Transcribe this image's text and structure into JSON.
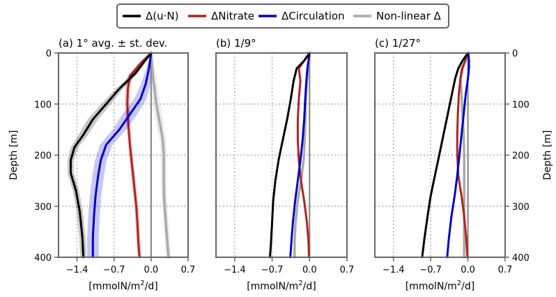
{
  "legend": {
    "items": [
      {
        "label": "Δ(u·N)",
        "color": "#000000"
      },
      {
        "label": "ΔNitrate",
        "color": "#b22222"
      },
      {
        "label": "ΔCirculation",
        "color": "#0000cc"
      },
      {
        "label": "Non-linear Δ",
        "color": "#aaaaaa"
      }
    ]
  },
  "chart_data": {
    "type": "line",
    "shared": {
      "xlim": [
        -1.75,
        0.7
      ],
      "ylim": [
        400,
        0
      ],
      "xticks": [
        -1.4,
        -0.7,
        0.0,
        0.7
      ],
      "xtick_labels": [
        "−1.4",
        "−0.7",
        "0.0",
        "0.7"
      ],
      "yticks": [
        0,
        100,
        200,
        300,
        400
      ],
      "xlabel": "[mmolN/m²/d]",
      "ylabel": "Depth [m]",
      "grid": true,
      "legend_position": "top-center"
    },
    "panels": [
      {
        "title": "(a) 1° avg. ± st. dev.",
        "ylabel_side": "left",
        "series": [
          {
            "name": "Δ(u·N)",
            "color": "#000000",
            "x": [
              0,
              -0.3,
              -0.6,
              -0.85,
              -1.1,
              -1.28,
              -1.45,
              -1.52,
              -1.52,
              -1.42,
              -1.35,
              -1.3,
              -1.28
            ],
            "y": [
              0,
              40,
              70,
              100,
              130,
              160,
              185,
              210,
              235,
              270,
              310,
              360,
              400
            ],
            "band": [
              0.0,
              0.05,
              0.07,
              0.09,
              0.1,
              0.09,
              0.07,
              0.06,
              0.06,
              0.06,
              0.06,
              0.06,
              0.06
            ]
          },
          {
            "name": "ΔNitrate",
            "color": "#b22222",
            "x": [
              0,
              -0.2,
              -0.4,
              -0.44,
              -0.45,
              -0.43,
              -0.4,
              -0.36,
              -0.32,
              -0.28,
              -0.26,
              -0.24,
              -0.22
            ],
            "y": [
              0,
              20,
              45,
              70,
              100,
              140,
              180,
              220,
              260,
              300,
              330,
              370,
              400
            ],
            "band": [
              0.0,
              0.03,
              0.05,
              0.05,
              0.05,
              0.04,
              0.04,
              0.04,
              0.04,
              0.04,
              0.04,
              0.04,
              0.04
            ]
          },
          {
            "name": "ΔCirculation",
            "color": "#0000cc",
            "x": [
              0,
              -0.04,
              -0.1,
              -0.2,
              -0.4,
              -0.6,
              -0.85,
              -0.95,
              -1.0,
              -1.05,
              -1.08,
              -1.1,
              -1.1
            ],
            "y": [
              0,
              30,
              60,
              90,
              120,
              150,
              180,
              210,
              240,
              280,
              320,
              360,
              400
            ],
            "band": [
              0.0,
              0.05,
              0.09,
              0.12,
              0.14,
              0.13,
              0.12,
              0.11,
              0.11,
              0.11,
              0.11,
              0.11,
              0.11
            ]
          },
          {
            "name": "Non-linear Δ",
            "color": "#aaaaaa",
            "x": [
              0,
              0.04,
              0.1,
              0.17,
              0.22,
              0.24,
              0.24,
              0.24,
              0.25,
              0.27,
              0.3,
              0.33
            ],
            "y": [
              0,
              50,
              100,
              140,
              170,
              200,
              230,
              260,
              290,
              320,
              360,
              400
            ],
            "band": [
              0.0,
              0.06,
              0.07,
              0.07,
              0.06,
              0.06,
              0.05,
              0.05,
              0.05,
              0.05,
              0.05,
              0.05
            ]
          }
        ]
      },
      {
        "title": "(b) 1/9°",
        "ylabel_side": "none",
        "series": [
          {
            "name": "Δ(u·N)",
            "color": "#000000",
            "x": [
              0,
              -0.1,
              -0.24,
              -0.3,
              -0.35,
              -0.42,
              -0.5,
              -0.58,
              -0.64,
              -0.68,
              -0.7,
              -0.72,
              -0.74
            ],
            "y": [
              0,
              15,
              30,
              55,
              90,
              130,
              170,
              210,
              250,
              290,
              330,
              370,
              400
            ]
          },
          {
            "name": "ΔNitrate",
            "color": "#b22222",
            "x": [
              0,
              -0.1,
              -0.2,
              -0.17,
              -0.2,
              -0.22,
              -0.22,
              -0.2,
              -0.16,
              -0.1,
              -0.05,
              -0.02,
              -0.01
            ],
            "y": [
              0,
              15,
              30,
              55,
              90,
              130,
              170,
              210,
              250,
              290,
              330,
              370,
              400
            ]
          },
          {
            "name": "ΔCirculation",
            "color": "#0000cc",
            "x": [
              0,
              -0.02,
              -0.04,
              -0.06,
              -0.08,
              -0.1,
              -0.13,
              -0.17,
              -0.22,
              -0.27,
              -0.31,
              -0.34,
              -0.36
            ],
            "y": [
              0,
              15,
              30,
              55,
              90,
              130,
              170,
              210,
              250,
              290,
              330,
              370,
              400
            ]
          },
          {
            "name": "Non-linear Δ",
            "color": "#aaaaaa",
            "x": [
              0,
              -0.01,
              -0.03,
              -0.05,
              -0.07,
              -0.08,
              -0.09,
              -0.11,
              -0.16,
              -0.22,
              -0.26,
              -0.28,
              -0.28
            ],
            "y": [
              0,
              15,
              30,
              55,
              90,
              130,
              170,
              210,
              250,
              290,
              330,
              370,
              400
            ]
          }
        ]
      },
      {
        "title": "(c) 1/27°",
        "ylabel_side": "right",
        "series": [
          {
            "name": "Δ(u·N)",
            "color": "#000000",
            "x": [
              0,
              -0.1,
              -0.18,
              -0.24,
              -0.3,
              -0.38,
              -0.46,
              -0.54,
              -0.62,
              -0.7,
              -0.76,
              -0.82,
              -0.86
            ],
            "y": [
              0,
              15,
              30,
              50,
              80,
              120,
              160,
              200,
              240,
              280,
              320,
              365,
              400
            ]
          },
          {
            "name": "ΔNitrate",
            "color": "#b22222",
            "x": [
              0,
              -0.05,
              -0.1,
              -0.14,
              -0.17,
              -0.19,
              -0.2,
              -0.2,
              -0.18,
              -0.12,
              -0.07,
              -0.03,
              -0.01
            ],
            "y": [
              0,
              15,
              30,
              50,
              80,
              120,
              160,
              200,
              240,
              280,
              320,
              365,
              400
            ]
          },
          {
            "name": "ΔCirculation",
            "color": "#0000cc",
            "x": [
              0.01,
              0.02,
              0.02,
              0.0,
              -0.04,
              -0.08,
              -0.12,
              -0.16,
              -0.2,
              -0.25,
              -0.31,
              -0.36,
              -0.39
            ],
            "y": [
              0,
              15,
              30,
              50,
              80,
              120,
              160,
              200,
              240,
              280,
              320,
              365,
              400
            ]
          },
          {
            "name": "Non-linear Δ",
            "color": "#aaaaaa",
            "x": [
              0,
              -0.05,
              -0.12,
              -0.14,
              -0.12,
              -0.1,
              -0.08,
              -0.07,
              -0.07,
              -0.07,
              -0.07,
              -0.07,
              -0.07
            ],
            "y": [
              0,
              15,
              30,
              50,
              80,
              120,
              160,
              200,
              240,
              280,
              320,
              365,
              400
            ]
          }
        ]
      }
    ]
  }
}
